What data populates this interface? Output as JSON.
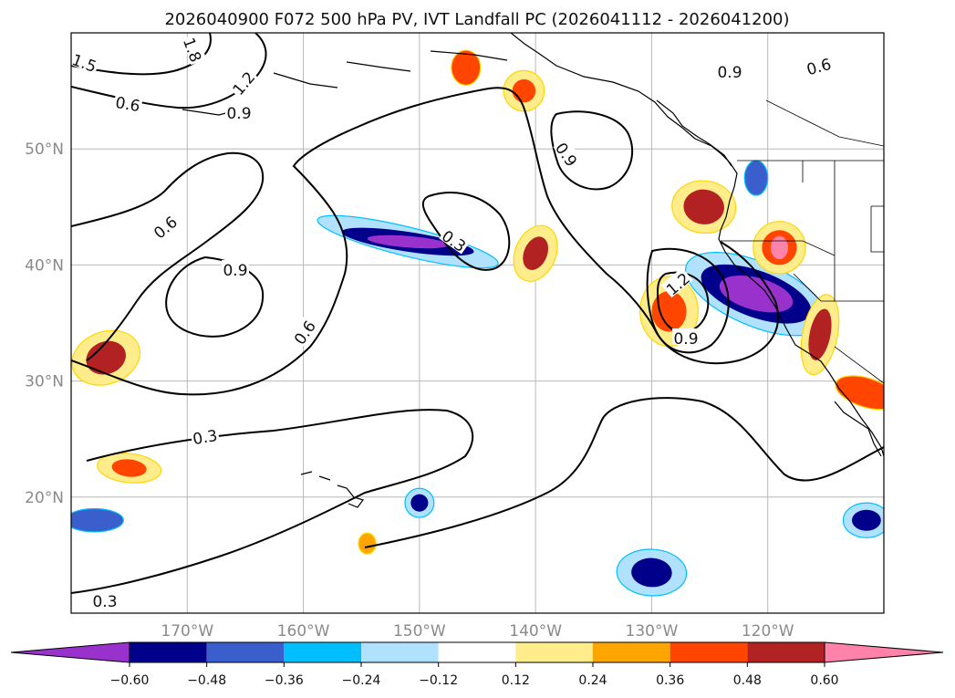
{
  "chart_data": {
    "type": "heatmap",
    "title": "2026040900 F072 500 hPa PV, IVT Landfall PC (2026041112 - 2026041200)",
    "xlabel": "",
    "ylabel": "",
    "x_range": [
      -180,
      -110
    ],
    "y_range": [
      10,
      60
    ],
    "lon_ticks": [
      -170,
      -160,
      -150,
      -140,
      -130,
      -120
    ],
    "lon_tick_labels": [
      "170°W",
      "160°W",
      "150°W",
      "140°W",
      "130°W",
      "120°W"
    ],
    "lat_ticks": [
      20,
      30,
      40,
      50
    ],
    "lat_tick_labels": [
      "20°N",
      "30°N",
      "40°N",
      "50°N"
    ],
    "grid": true,
    "colorbar": {
      "boundaries": [
        -0.6,
        -0.48,
        -0.36,
        -0.24,
        -0.12,
        0.12,
        0.24,
        0.36,
        0.48,
        0.6
      ],
      "tick_labels": [
        "−0.60",
        "−0.48",
        "−0.36",
        "−0.24",
        "−0.12",
        "0.12",
        "0.24",
        "0.36",
        "0.48",
        "0.60"
      ],
      "colors": [
        "#9932cc",
        "#00008b",
        "#3a5fcd",
        "#00bfff",
        "#b0e2ff",
        "#ffffff",
        "#ffec8b",
        "#ffa500",
        "#ff4500",
        "#b22222",
        "#ff82ab"
      ],
      "extend": "both"
    },
    "contour_labels": [
      "0.3",
      "0.6",
      "0.9",
      "1.2",
      "1.5",
      "1.8"
    ],
    "shaded_anomalies": [
      {
        "name": "negative-anomaly-central-pacific",
        "lon": -151,
        "lat": 42,
        "min": -0.66
      },
      {
        "name": "negative-anomaly-california-coast",
        "lon": -121,
        "lat": 37.5,
        "min": -0.62
      },
      {
        "name": "negative-anomaly-hawaii-east",
        "lon": -150,
        "lat": 19.5,
        "min": -0.5
      },
      {
        "name": "negative-anomaly-south-east",
        "lon": -130,
        "lat": 13.5,
        "min": -0.5
      },
      {
        "name": "negative-anomaly-far-east",
        "lon": -111.5,
        "lat": 18,
        "min": -0.5
      },
      {
        "name": "negative-anomaly-west-edge",
        "lon": -178,
        "lat": 18,
        "min": -0.4
      },
      {
        "name": "negative-anomaly-oregon",
        "lon": -121,
        "lat": 47.5,
        "min": -0.4
      },
      {
        "name": "positive-anomaly-west-pacific",
        "lon": -177,
        "lat": 32,
        "min": 0.52
      },
      {
        "name": "positive-anomaly-gulf-alaska",
        "lon": -141,
        "lat": 55,
        "min": 0.45
      },
      {
        "name": "positive-anomaly-gulf-alaska-west",
        "lon": -146,
        "lat": 57,
        "min": 0.4
      },
      {
        "name": "positive-anomaly-mid-pacific",
        "lon": -140,
        "lat": 41,
        "min": 0.5
      },
      {
        "name": "positive-anomaly-northwest-coast",
        "lon": -125.5,
        "lat": 45,
        "min": 0.5
      },
      {
        "name": "positive-anomaly-offshore-california",
        "lon": -128.5,
        "lat": 36,
        "min": 0.45
      },
      {
        "name": "positive-anomaly-nevada",
        "lon": -119,
        "lat": 41.5,
        "min": 0.62
      },
      {
        "name": "positive-anomaly-baja",
        "lon": -115.5,
        "lat": 34,
        "min": 0.5
      },
      {
        "name": "positive-anomaly-mexico",
        "lon": -111.5,
        "lat": 29,
        "min": 0.45
      },
      {
        "name": "positive-anomaly-south-west",
        "lon": -175,
        "lat": 22.5,
        "min": 0.45
      },
      {
        "name": "positive-anomaly-hawaii-south",
        "lon": -154.5,
        "lat": 16,
        "min": 0.3
      }
    ],
    "contour_lines": [
      {
        "name": "pv-contour-0.3-hawaii",
        "level": 0.3
      },
      {
        "name": "pv-contour-0.3-central",
        "level": 0.3
      },
      {
        "name": "pv-contour-0.3-southwest",
        "level": 0.3
      },
      {
        "name": "pv-contour-0.6-main",
        "level": 0.6
      },
      {
        "name": "pv-contour-0.6-northwest",
        "level": 0.6
      },
      {
        "name": "pv-contour-0.9-west",
        "level": 0.9
      },
      {
        "name": "pv-contour-0.9-gulf",
        "level": 0.9
      },
      {
        "name": "pv-contour-0.9-offshore",
        "level": 0.9
      },
      {
        "name": "pv-contour-1.2-offshore",
        "level": 1.2
      },
      {
        "name": "pv-contour-1.2-northwest",
        "level": 1.2
      }
    ]
  }
}
